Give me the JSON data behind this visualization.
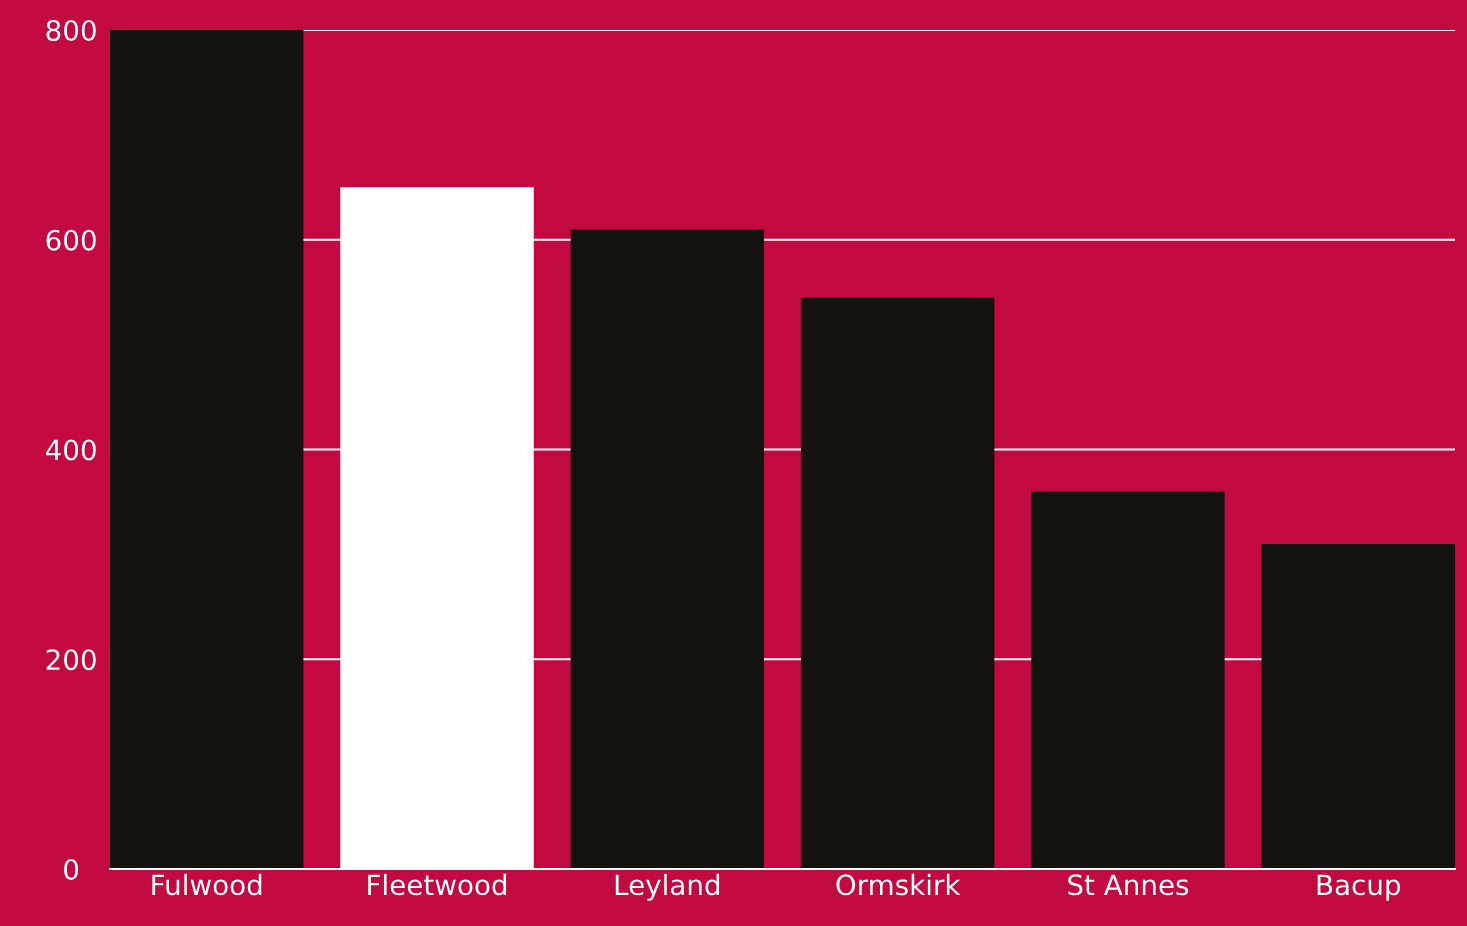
{
  "chart_data": {
    "type": "bar",
    "categories": [
      "Fulwood",
      "Fleetwood",
      "Leyland",
      "Ormskirk",
      "St Annes",
      "Bacup"
    ],
    "values": [
      800,
      650,
      610,
      545,
      360,
      310
    ],
    "colors": [
      "#13120e",
      "#ffffff",
      "#13120e",
      "#13120e",
      "#13120e",
      "#13120e"
    ],
    "ylim": [
      0,
      800
    ],
    "yticks": [
      0,
      200,
      400,
      600,
      800
    ],
    "grid": "y"
  }
}
